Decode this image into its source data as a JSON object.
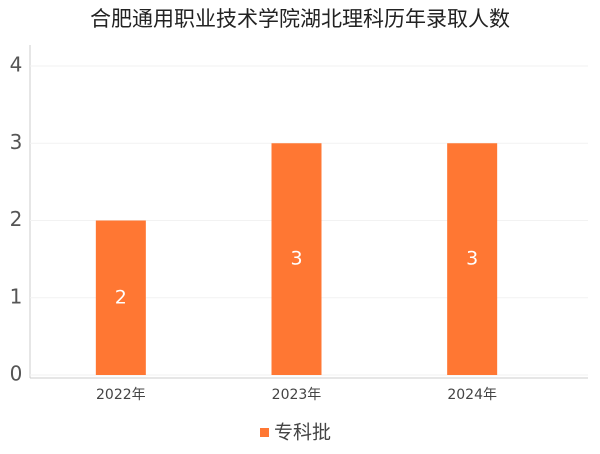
{
  "chart_data": {
    "type": "bar",
    "title": "合肥通用职业技术学院湖北理科历年录取人数",
    "categories": [
      "2022年",
      "2023年",
      "2024年"
    ],
    "series": [
      {
        "name": "专科批",
        "color": "#ff7733",
        "values": [
          2,
          3,
          3
        ]
      }
    ],
    "ylim": [
      0,
      4
    ],
    "yticks": [
      0,
      1,
      2,
      3,
      4
    ],
    "grid": true
  }
}
